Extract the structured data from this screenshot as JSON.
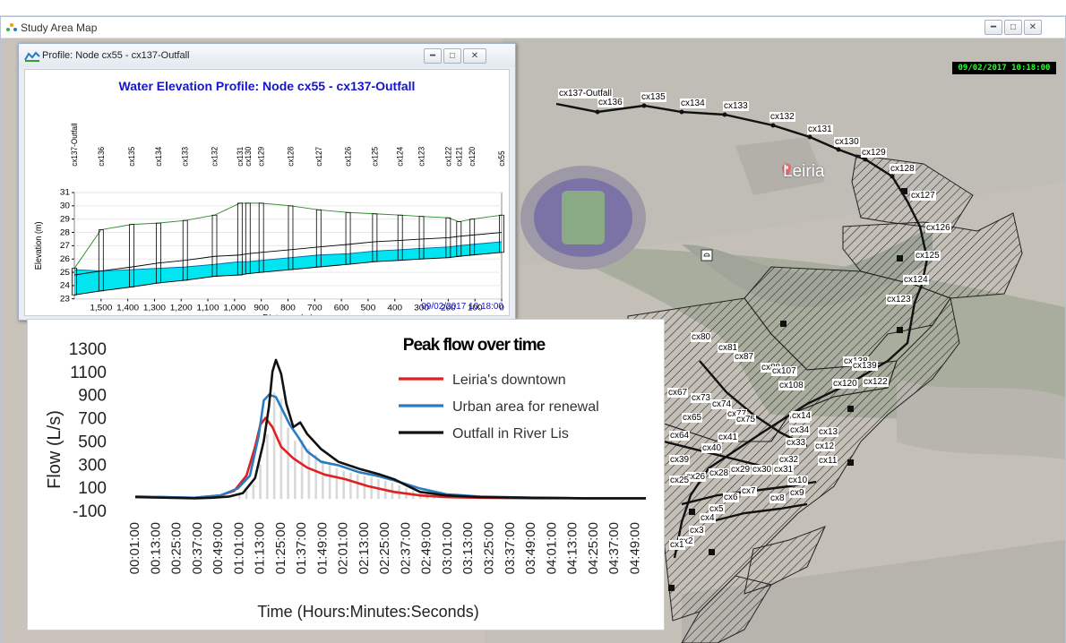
{
  "main_window": {
    "title": "Study Area Map",
    "timestamp": "09/02/2017 10:18:00"
  },
  "profile_window": {
    "title": "Profile: Node cx55 - cx137-Outfall",
    "chart_title": "Water Elevation Profile: Node cx55 - cx137-Outfall",
    "timestamp": "09/02/2017 10:18:00"
  },
  "map": {
    "place_label": "Leiria",
    "route_labels": [
      "cx137-Outfall",
      "cx136",
      "cx135",
      "cx134",
      "cx133",
      "cx132",
      "cx131",
      "cx130",
      "cx129",
      "cx128",
      "cx127",
      "cx126",
      "cx125",
      "cx124",
      "cx123"
    ],
    "cluster_labels": [
      "cx80",
      "cx81",
      "cx87",
      "cx88",
      "cx107",
      "cx108",
      "cx67",
      "cx73",
      "cx74",
      "cx77",
      "cx75",
      "cx65",
      "cx64",
      "cx41",
      "cx40",
      "cx39",
      "cx34",
      "cx33",
      "cx32",
      "cx31",
      "cx30",
      "cx29",
      "cx28",
      "cx26",
      "cx25",
      "cx13",
      "cx12",
      "cx11",
      "cx10",
      "cx9",
      "cx8",
      "cx7",
      "cx6",
      "cx5",
      "cx4",
      "cx3",
      "cx2",
      "cx1",
      "cx138",
      "cx139",
      "cx122",
      "cx120",
      "cx55",
      "cx14"
    ]
  },
  "colors": {
    "downtown": "#e02020",
    "urban": "#2b7bc0",
    "outfall": "#111111",
    "water": "#00e5f0",
    "terrain": "#2e8b2e",
    "title_blue": "#1515c8"
  },
  "chart_data": [
    {
      "type": "area",
      "title": "Water Elevation Profile: Node cx55 - cx137-Outfall",
      "xlabel": "Distance (m)",
      "ylabel": "Elevation (m)",
      "xlim": [
        1600,
        0
      ],
      "ylim": [
        23,
        31
      ],
      "x_ticks": [
        "1,500",
        "1,400",
        "1,300",
        "1,200",
        "1,100",
        "1,000",
        "900",
        "800",
        "700",
        "600",
        "500",
        "400",
        "300",
        "200",
        "100",
        "0"
      ],
      "y_ticks": [
        "23",
        "24",
        "25",
        "26",
        "27",
        "28",
        "29",
        "30",
        "31"
      ],
      "nodes": [
        {
          "name": "cx137-Outfall",
          "distance": 1600,
          "invert": 23.3,
          "water": 25.2,
          "ground": 25.3
        },
        {
          "name": "cx136",
          "distance": 1500,
          "invert": 23.6,
          "water": 25.1,
          "ground": 28.2
        },
        {
          "name": "cx135",
          "distance": 1385,
          "invert": 23.9,
          "water": 25.2,
          "ground": 28.6
        },
        {
          "name": "cx134",
          "distance": 1285,
          "invert": 24.2,
          "water": 25.3,
          "ground": 28.7
        },
        {
          "name": "cx133",
          "distance": 1185,
          "invert": 24.4,
          "water": 25.4,
          "ground": 28.9
        },
        {
          "name": "cx132",
          "distance": 1075,
          "invert": 24.7,
          "water": 25.6,
          "ground": 29.3
        },
        {
          "name": "cx131",
          "distance": 980,
          "invert": 24.8,
          "water": 25.8,
          "ground": 30.2
        },
        {
          "name": "cx130",
          "distance": 950,
          "invert": 24.9,
          "water": 25.8,
          "ground": 30.2
        },
        {
          "name": "cx129",
          "distance": 900,
          "invert": 25.0,
          "water": 25.9,
          "ground": 30.2
        },
        {
          "name": "cx128",
          "distance": 790,
          "invert": 25.2,
          "water": 26.1,
          "ground": 30.0
        },
        {
          "name": "cx127",
          "distance": 685,
          "invert": 25.4,
          "water": 26.3,
          "ground": 29.7
        },
        {
          "name": "cx126",
          "distance": 575,
          "invert": 25.6,
          "water": 26.4,
          "ground": 29.5
        },
        {
          "name": "cx125",
          "distance": 475,
          "invert": 25.8,
          "water": 26.6,
          "ground": 29.4
        },
        {
          "name": "cx124",
          "distance": 380,
          "invert": 25.9,
          "water": 26.7,
          "ground": 29.3
        },
        {
          "name": "cx123",
          "distance": 300,
          "invert": 26.0,
          "water": 26.8,
          "ground": 29.2
        },
        {
          "name": "cx122",
          "distance": 200,
          "invert": 26.1,
          "water": 26.9,
          "ground": 29.1
        },
        {
          "name": "cx121",
          "distance": 160,
          "invert": 26.2,
          "water": 27.0,
          "ground": 28.8
        },
        {
          "name": "cx120",
          "distance": 110,
          "invert": 26.3,
          "water": 27.1,
          "ground": 29.0
        },
        {
          "name": "cx55",
          "distance": 0,
          "invert": 26.5,
          "water": 27.3,
          "ground": 29.3
        }
      ]
    },
    {
      "type": "line",
      "title": "Peak flow over time",
      "xlabel": "Time (Hours:Minutes:Seconds)",
      "ylabel": "Flow (L/s)",
      "ylim": [
        -100,
        1300
      ],
      "y_ticks": [
        "1300",
        "1100",
        "900",
        "700",
        "500",
        "300",
        "100",
        "-100"
      ],
      "x_ticks": [
        "00:01:00",
        "00:13:00",
        "00:25:00",
        "00:37:00",
        "00:49:00",
        "01:01:00",
        "01:13:00",
        "01:25:00",
        "01:37:00",
        "01:49:00",
        "02:01:00",
        "02:13:00",
        "02:25:00",
        "02:37:00",
        "02:49:00",
        "03:01:00",
        "03:13:00",
        "03:25:00",
        "03:37:00",
        "03:49:00",
        "04:01:00",
        "04:13:00",
        "04:25:00",
        "04:37:00",
        "04:49:00"
      ],
      "x_minutes": [
        1,
        13,
        25,
        37,
        49,
        61,
        73,
        85,
        97,
        109,
        121,
        133,
        145,
        157,
        169,
        181,
        193,
        205,
        217,
        229,
        241,
        253,
        265,
        277,
        289
      ],
      "series": [
        {
          "name": "Leiria's downtown",
          "color": "#e02020",
          "x": [
            1,
            20,
            35,
            50,
            58,
            65,
            70,
            73,
            76,
            80,
            85,
            92,
            100,
            110,
            122,
            135,
            150,
            165,
            180,
            200,
            230,
            260,
            295
          ],
          "values": [
            20,
            15,
            10,
            30,
            70,
            200,
            450,
            640,
            700,
            620,
            450,
            350,
            270,
            210,
            170,
            110,
            60,
            30,
            15,
            10,
            5,
            5,
            5
          ]
        },
        {
          "name": "Urban area for renewal",
          "color": "#2b7bc0",
          "x": [
            1,
            20,
            35,
            50,
            60,
            67,
            72,
            75,
            78,
            82,
            86,
            90,
            95,
            100,
            108,
            118,
            130,
            140,
            150,
            165,
            180,
            200,
            230,
            260,
            295
          ],
          "values": [
            20,
            15,
            10,
            30,
            90,
            200,
            540,
            850,
            900,
            880,
            760,
            640,
            530,
            410,
            320,
            290,
            230,
            200,
            160,
            90,
            40,
            20,
            10,
            5,
            5
          ]
        },
        {
          "name": "Outfall in River Lis",
          "color": "#111111",
          "x": [
            1,
            20,
            35,
            45,
            55,
            63,
            70,
            75,
            78,
            80,
            82,
            85,
            88,
            92,
            96,
            100,
            108,
            118,
            130,
            142,
            150,
            158,
            165,
            180,
            200,
            230,
            260,
            295
          ],
          "values": [
            15,
            10,
            5,
            10,
            20,
            50,
            180,
            500,
            800,
            1100,
            1200,
            1080,
            820,
            620,
            660,
            560,
            430,
            320,
            260,
            210,
            170,
            110,
            60,
            30,
            15,
            10,
            5,
            5
          ]
        }
      ]
    }
  ]
}
